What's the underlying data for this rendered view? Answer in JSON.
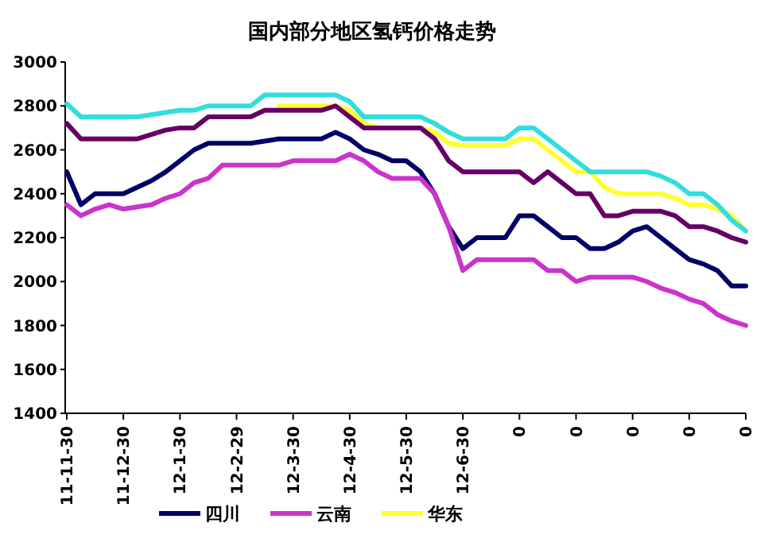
{
  "chart_data": {
    "type": "line",
    "title": "国内部分地区氢钙价格走势",
    "categories": [
      "11-11-30",
      null,
      null,
      null,
      "11-12-30",
      null,
      null,
      null,
      "12-1-30",
      null,
      null,
      null,
      "12-2-29",
      null,
      null,
      null,
      "12-3-30",
      null,
      null,
      null,
      "12-4-30",
      null,
      null,
      null,
      "12-5-30",
      null,
      null,
      null,
      "12-6-30",
      null,
      null,
      null,
      "0",
      null,
      null,
      null,
      "0",
      null,
      null,
      null,
      "0",
      null,
      null,
      null,
      "0",
      null,
      null,
      null,
      "0"
    ],
    "series": [
      {
        "name": "四川",
        "color": "#000066",
        "values": [
          2500,
          2350,
          2400,
          2400,
          2400,
          2430,
          2460,
          2500,
          2550,
          2600,
          2630,
          2630,
          2630,
          2630,
          2640,
          2650,
          2650,
          2650,
          2650,
          2680,
          2650,
          2600,
          2580,
          2550,
          2550,
          2500,
          2400,
          2250,
          2150,
          2200,
          2200,
          2200,
          2300,
          2300,
          2250,
          2200,
          2200,
          2150,
          2150,
          2180,
          2230,
          2250,
          2200,
          2150,
          2100,
          2080,
          2050,
          1980,
          1980
        ]
      },
      {
        "name": "云南",
        "color": "#cc33cc",
        "values": [
          2350,
          2300,
          2330,
          2350,
          2330,
          2340,
          2350,
          2380,
          2400,
          2450,
          2470,
          2530,
          2530,
          2530,
          2530,
          2530,
          2550,
          2550,
          2550,
          2550,
          2580,
          2550,
          2500,
          2470,
          2470,
          2470,
          2400,
          2250,
          2050,
          2100,
          2100,
          2100,
          2100,
          2100,
          2050,
          2050,
          2000,
          2020,
          2020,
          2020,
          2020,
          2000,
          1970,
          1950,
          1920,
          1900,
          1850,
          1820,
          1800
        ]
      },
      {
        "name": "华东",
        "color": "#ffff33",
        "values": [
          null,
          null,
          null,
          null,
          null,
          null,
          null,
          null,
          null,
          null,
          null,
          null,
          null,
          null,
          null,
          2800,
          2800,
          2800,
          2800,
          2800,
          2780,
          2720,
          2700,
          null,
          null,
          2700,
          2680,
          2630,
          2620,
          2620,
          2620,
          2620,
          2650,
          2650,
          2600,
          2550,
          2500,
          2500,
          2430,
          2400,
          2400,
          2400,
          2400,
          2380,
          2350,
          2350,
          2330,
          2300,
          2230
        ]
      },
      {
        "color": "#33dddd",
        "values": [
          2810,
          2750,
          2750,
          2750,
          2750,
          2750,
          2760,
          2770,
          2780,
          2780,
          2800,
          2800,
          2800,
          2800,
          2850,
          2850,
          2850,
          2850,
          2850,
          2850,
          2820,
          2750,
          2750,
          2750,
          2750,
          2750,
          2720,
          2680,
          2650,
          2650,
          2650,
          2650,
          2700,
          2700,
          2650,
          2600,
          2550,
          2500,
          2500,
          2500,
          2500,
          2500,
          2480,
          2450,
          2400,
          2400,
          2350,
          2280,
          2230
        ]
      },
      {
        "color": "#660066",
        "values": [
          2720,
          2650,
          2650,
          2650,
          2650,
          2650,
          2670,
          2690,
          2700,
          2700,
          2750,
          2750,
          2750,
          2750,
          2780,
          2780,
          2780,
          2780,
          2780,
          2800,
          2750,
          2700,
          2700,
          2700,
          2700,
          2700,
          2650,
          2550,
          2500,
          2500,
          2500,
          2500,
          2500,
          2450,
          2500,
          2450,
          2400,
          2400,
          2300,
          2300,
          2320,
          2320,
          2320,
          2300,
          2250,
          2250,
          2230,
          2200,
          2180
        ]
      }
    ],
    "ylim": [
      1400,
      3000
    ],
    "yticks": [
      1400,
      1600,
      1800,
      2000,
      2200,
      2400,
      2600,
      2800,
      3000
    ],
    "legend": "bottom",
    "grid": false
  }
}
